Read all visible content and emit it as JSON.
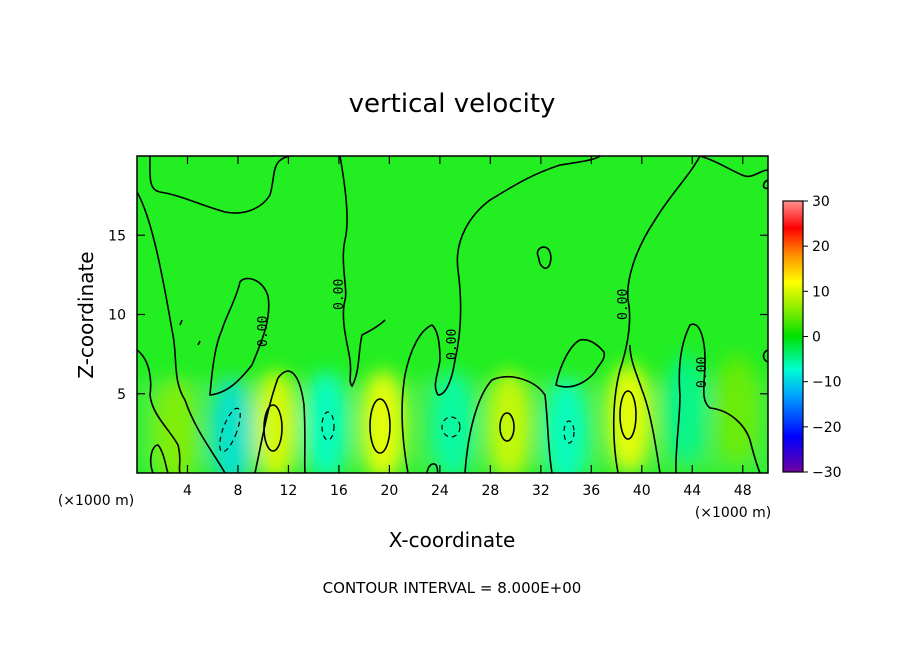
{
  "chart_data": {
    "type": "heatmap",
    "title": "vertical velocity",
    "xlabel": "X-coordinate",
    "ylabel": "Z-coordinate",
    "x_unit_left": "(×1000 m)",
    "x_unit_right": "(×1000 m)",
    "xlim": [
      0,
      50
    ],
    "ylim": [
      0,
      20
    ],
    "x_ticks": [
      4,
      8,
      12,
      16,
      20,
      24,
      28,
      32,
      36,
      40,
      44,
      48
    ],
    "x_tick_labels": [
      "4",
      "8",
      "12",
      "16",
      "20",
      "24",
      "28",
      "32",
      "36",
      "40",
      "44",
      "48"
    ],
    "y_ticks": [
      5,
      10,
      15
    ],
    "y_tick_labels": [
      "5",
      "10",
      "15"
    ],
    "colorbar": {
      "min": -30,
      "max": 30,
      "ticks": [
        30,
        20,
        10,
        0,
        -10,
        -20,
        -30
      ],
      "tick_labels": [
        "30",
        "20",
        "10",
        "0",
        "−10",
        "−20",
        "−30"
      ]
    },
    "contour_labels": [
      "0.00",
      "0.00",
      "0.00",
      "0.00",
      "0.00"
    ],
    "footer": "CONTOUR INTERVAL = 8.000E+00",
    "cells": [
      {
        "x": 3,
        "z": 2.5,
        "value": 6
      },
      {
        "x": 7.5,
        "z": 2.5,
        "value": -9
      },
      {
        "x": 11,
        "z": 3,
        "value": 11
      },
      {
        "x": 15,
        "z": 3,
        "value": -7
      },
      {
        "x": 19.5,
        "z": 3,
        "value": 12
      },
      {
        "x": 25,
        "z": 3,
        "value": -6
      },
      {
        "x": 29.5,
        "z": 3,
        "value": 10
      },
      {
        "x": 34,
        "z": 2.5,
        "value": -7
      },
      {
        "x": 39,
        "z": 3.5,
        "value": 12
      },
      {
        "x": 43.5,
        "z": 4,
        "value": -5
      },
      {
        "x": 47.5,
        "z": 4,
        "value": 5
      }
    ]
  }
}
